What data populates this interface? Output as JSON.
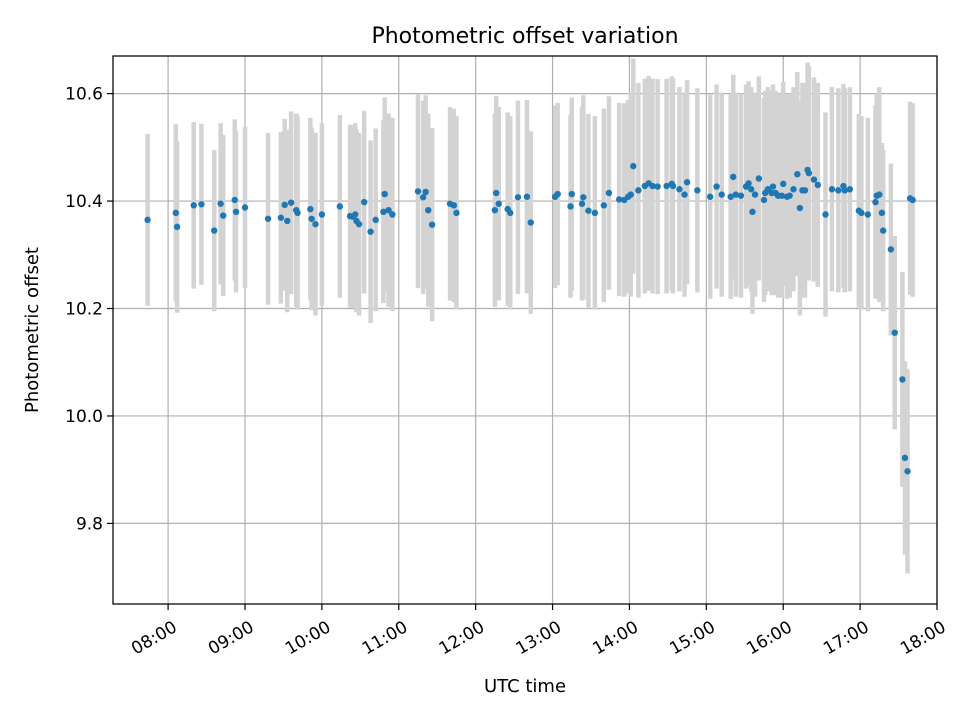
{
  "chart_data": {
    "type": "scatter",
    "title": "Photometric offset variation",
    "xlabel": "UTC time",
    "ylabel": "Photometric offset",
    "x_ticks": [
      "08:00",
      "09:00",
      "10:00",
      "11:00",
      "12:00",
      "13:00",
      "14:00",
      "15:00",
      "16:00",
      "17:00",
      "18:00"
    ],
    "y_ticks": [
      "9.8",
      "10.0",
      "10.2",
      "10.4",
      "10.6"
    ],
    "xlim": [
      "07:17",
      "18:00"
    ],
    "ylim": [
      9.65,
      10.67
    ],
    "grid": true,
    "colors": {
      "points": "#1f77b4",
      "errorbars": "#d3d3d3",
      "grid": "#b0b0b0"
    },
    "series": [
      {
        "x": [
          "07:44",
          "08:06",
          "08:07",
          "08:20",
          "08:26",
          "08:36",
          "08:41",
          "08:43",
          "08:52",
          "08:53",
          "09:00",
          "09:18",
          "09:28",
          "09:31",
          "09:33",
          "09:36",
          "09:40",
          "09:41",
          "09:51",
          "09:52",
          "09:55",
          "10:00",
          "10:14",
          "10:22",
          "10:24",
          "10:26",
          "10:27",
          "10:29",
          "10:33",
          "10:38",
          "10:42",
          "10:48",
          "10:49",
          "10:52",
          "10:55",
          "11:15",
          "11:19",
          "11:21",
          "11:23",
          "11:26",
          "11:40",
          "11:43",
          "11:45",
          "12:15",
          "12:16",
          "12:18",
          "12:25",
          "12:27",
          "12:33",
          "12:40",
          "12:43",
          "13:02",
          "13:04",
          "13:14",
          "13:15",
          "13:23",
          "13:24",
          "13:28",
          "13:33",
          "13:40",
          "13:44",
          "13:52",
          "13:56",
          "13:59",
          "14:01",
          "14:03",
          "14:07",
          "14:12",
          "14:15",
          "14:18",
          "14:22",
          "14:29",
          "14:33",
          "14:34",
          "14:39",
          "14:43",
          "14:45",
          "14:53",
          "15:03",
          "15:08",
          "15:12",
          "15:19",
          "15:21",
          "15:23",
          "15:27",
          "15:31",
          "15:33",
          "15:35",
          "15:36",
          "15:38",
          "15:41",
          "15:45",
          "15:46",
          "15:48",
          "15:51",
          "15:52",
          "15:54",
          "15:56",
          "15:59",
          "16:00",
          "16:03",
          "16:05",
          "16:08",
          "16:11",
          "16:13",
          "16:15",
          "16:17",
          "16:19",
          "16:20",
          "16:24",
          "16:27",
          "16:33",
          "16:38",
          "16:43",
          "16:47",
          "16:48",
          "16:52",
          "16:59",
          "17:01",
          "17:06",
          "17:12",
          "17:13",
          "17:15",
          "17:17",
          "17:18",
          "17:24",
          "17:27",
          "17:33",
          "17:35",
          "17:37",
          "17:39",
          "17:41"
        ],
        "y": [
          10.365,
          10.378,
          10.352,
          10.392,
          10.394,
          10.345,
          10.395,
          10.373,
          10.402,
          10.38,
          10.388,
          10.367,
          10.369,
          10.393,
          10.363,
          10.397,
          10.383,
          10.378,
          10.385,
          10.367,
          10.357,
          10.375,
          10.39,
          10.372,
          10.371,
          10.375,
          10.363,
          10.357,
          10.398,
          10.343,
          10.365,
          10.38,
          10.413,
          10.383,
          10.375,
          10.418,
          10.407,
          10.417,
          10.383,
          10.356,
          10.395,
          10.392,
          10.378,
          10.383,
          10.415,
          10.395,
          10.385,
          10.378,
          10.407,
          10.408,
          10.36,
          10.408,
          10.413,
          10.39,
          10.413,
          10.395,
          10.407,
          10.382,
          10.378,
          10.392,
          10.415,
          10.403,
          10.402,
          10.408,
          10.412,
          10.465,
          10.42,
          10.428,
          10.433,
          10.428,
          10.427,
          10.428,
          10.432,
          10.428,
          10.422,
          10.412,
          10.435,
          10.42,
          10.408,
          10.427,
          10.412,
          10.408,
          10.445,
          10.412,
          10.41,
          10.427,
          10.433,
          10.422,
          10.38,
          10.412,
          10.442,
          10.402,
          10.415,
          10.422,
          10.415,
          10.427,
          10.415,
          10.41,
          10.41,
          10.432,
          10.408,
          10.41,
          10.422,
          10.45,
          10.387,
          10.42,
          10.42,
          10.458,
          10.452,
          10.44,
          10.43,
          10.375,
          10.422,
          10.42,
          10.428,
          10.42,
          10.422,
          10.382,
          10.378,
          10.375,
          10.398,
          10.41,
          10.412,
          10.378,
          10.345,
          10.31,
          10.155,
          10.068,
          9.922,
          9.897,
          10.405,
          10.402
        ],
        "yerr": [
          0.16,
          0.165,
          0.16,
          0.155,
          0.15,
          0.15,
          0.15,
          0.15,
          0.15,
          0.15,
          0.15,
          0.16,
          0.16,
          0.16,
          0.17,
          0.17,
          0.18,
          0.18,
          0.17,
          0.17,
          0.17,
          0.17,
          0.17,
          0.17,
          0.17,
          0.17,
          0.17,
          0.17,
          0.17,
          0.17,
          0.17,
          0.17,
          0.18,
          0.18,
          0.18,
          0.18,
          0.18,
          0.18,
          0.18,
          0.18,
          0.18,
          0.18,
          0.18,
          0.18,
          0.18,
          0.18,
          0.18,
          0.18,
          0.18,
          0.18,
          0.17,
          0.17,
          0.17,
          0.17,
          0.18,
          0.18,
          0.19,
          0.18,
          0.18,
          0.18,
          0.18,
          0.18,
          0.18,
          0.18,
          0.19,
          0.2,
          0.2,
          0.2,
          0.2,
          0.2,
          0.2,
          0.2,
          0.2,
          0.2,
          0.19,
          0.19,
          0.19,
          0.19,
          0.19,
          0.19,
          0.19,
          0.19,
          0.19,
          0.19,
          0.19,
          0.19,
          0.19,
          0.19,
          0.19,
          0.19,
          0.19,
          0.19,
          0.19,
          0.19,
          0.19,
          0.19,
          0.19,
          0.19,
          0.19,
          0.19,
          0.19,
          0.19,
          0.19,
          0.19,
          0.2,
          0.2,
          0.2,
          0.2,
          0.2,
          0.19,
          0.19,
          0.19,
          0.19,
          0.19,
          0.19,
          0.19,
          0.19,
          0.18,
          0.18,
          0.18,
          0.18,
          0.19,
          0.2,
          0.13,
          0.15,
          0.16,
          0.18,
          0.2,
          0.18,
          0.19,
          0.18,
          0.18
        ]
      }
    ]
  }
}
